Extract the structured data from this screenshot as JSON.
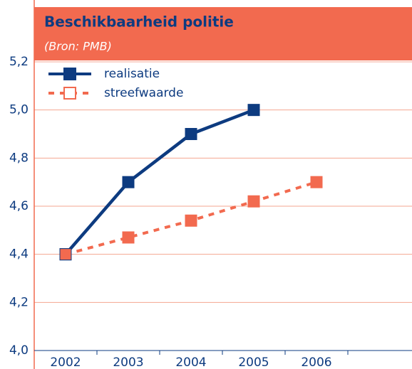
{
  "chart_data": {
    "type": "line",
    "title": "Beschikbaarheid politie",
    "subtitle": "(Bron: PMB)",
    "categories": [
      "2002",
      "2003",
      "2004",
      "2005",
      "2006"
    ],
    "series": [
      {
        "name": "realisatie",
        "color": "#0d3b80",
        "dashed": false,
        "marker": "filled",
        "values": [
          4.4,
          4.7,
          4.9,
          5.0,
          null
        ]
      },
      {
        "name": "streefwaarde",
        "color": "#f26a4f",
        "dashed": true,
        "marker": "hollow",
        "values": [
          4.4,
          4.47,
          4.54,
          4.62,
          4.7
        ]
      }
    ],
    "ylim": [
      4.0,
      5.2
    ],
    "yticks": [
      {
        "value": 4.0,
        "label": "4,0"
      },
      {
        "value": 4.2,
        "label": "4,2"
      },
      {
        "value": 4.4,
        "label": "4,4"
      },
      {
        "value": 4.6,
        "label": "4,6"
      },
      {
        "value": 4.8,
        "label": "4,8"
      },
      {
        "value": 5.0,
        "label": "5,0"
      },
      {
        "value": 5.2,
        "label": "5,2"
      }
    ],
    "grid": true,
    "legend": "top-left"
  }
}
